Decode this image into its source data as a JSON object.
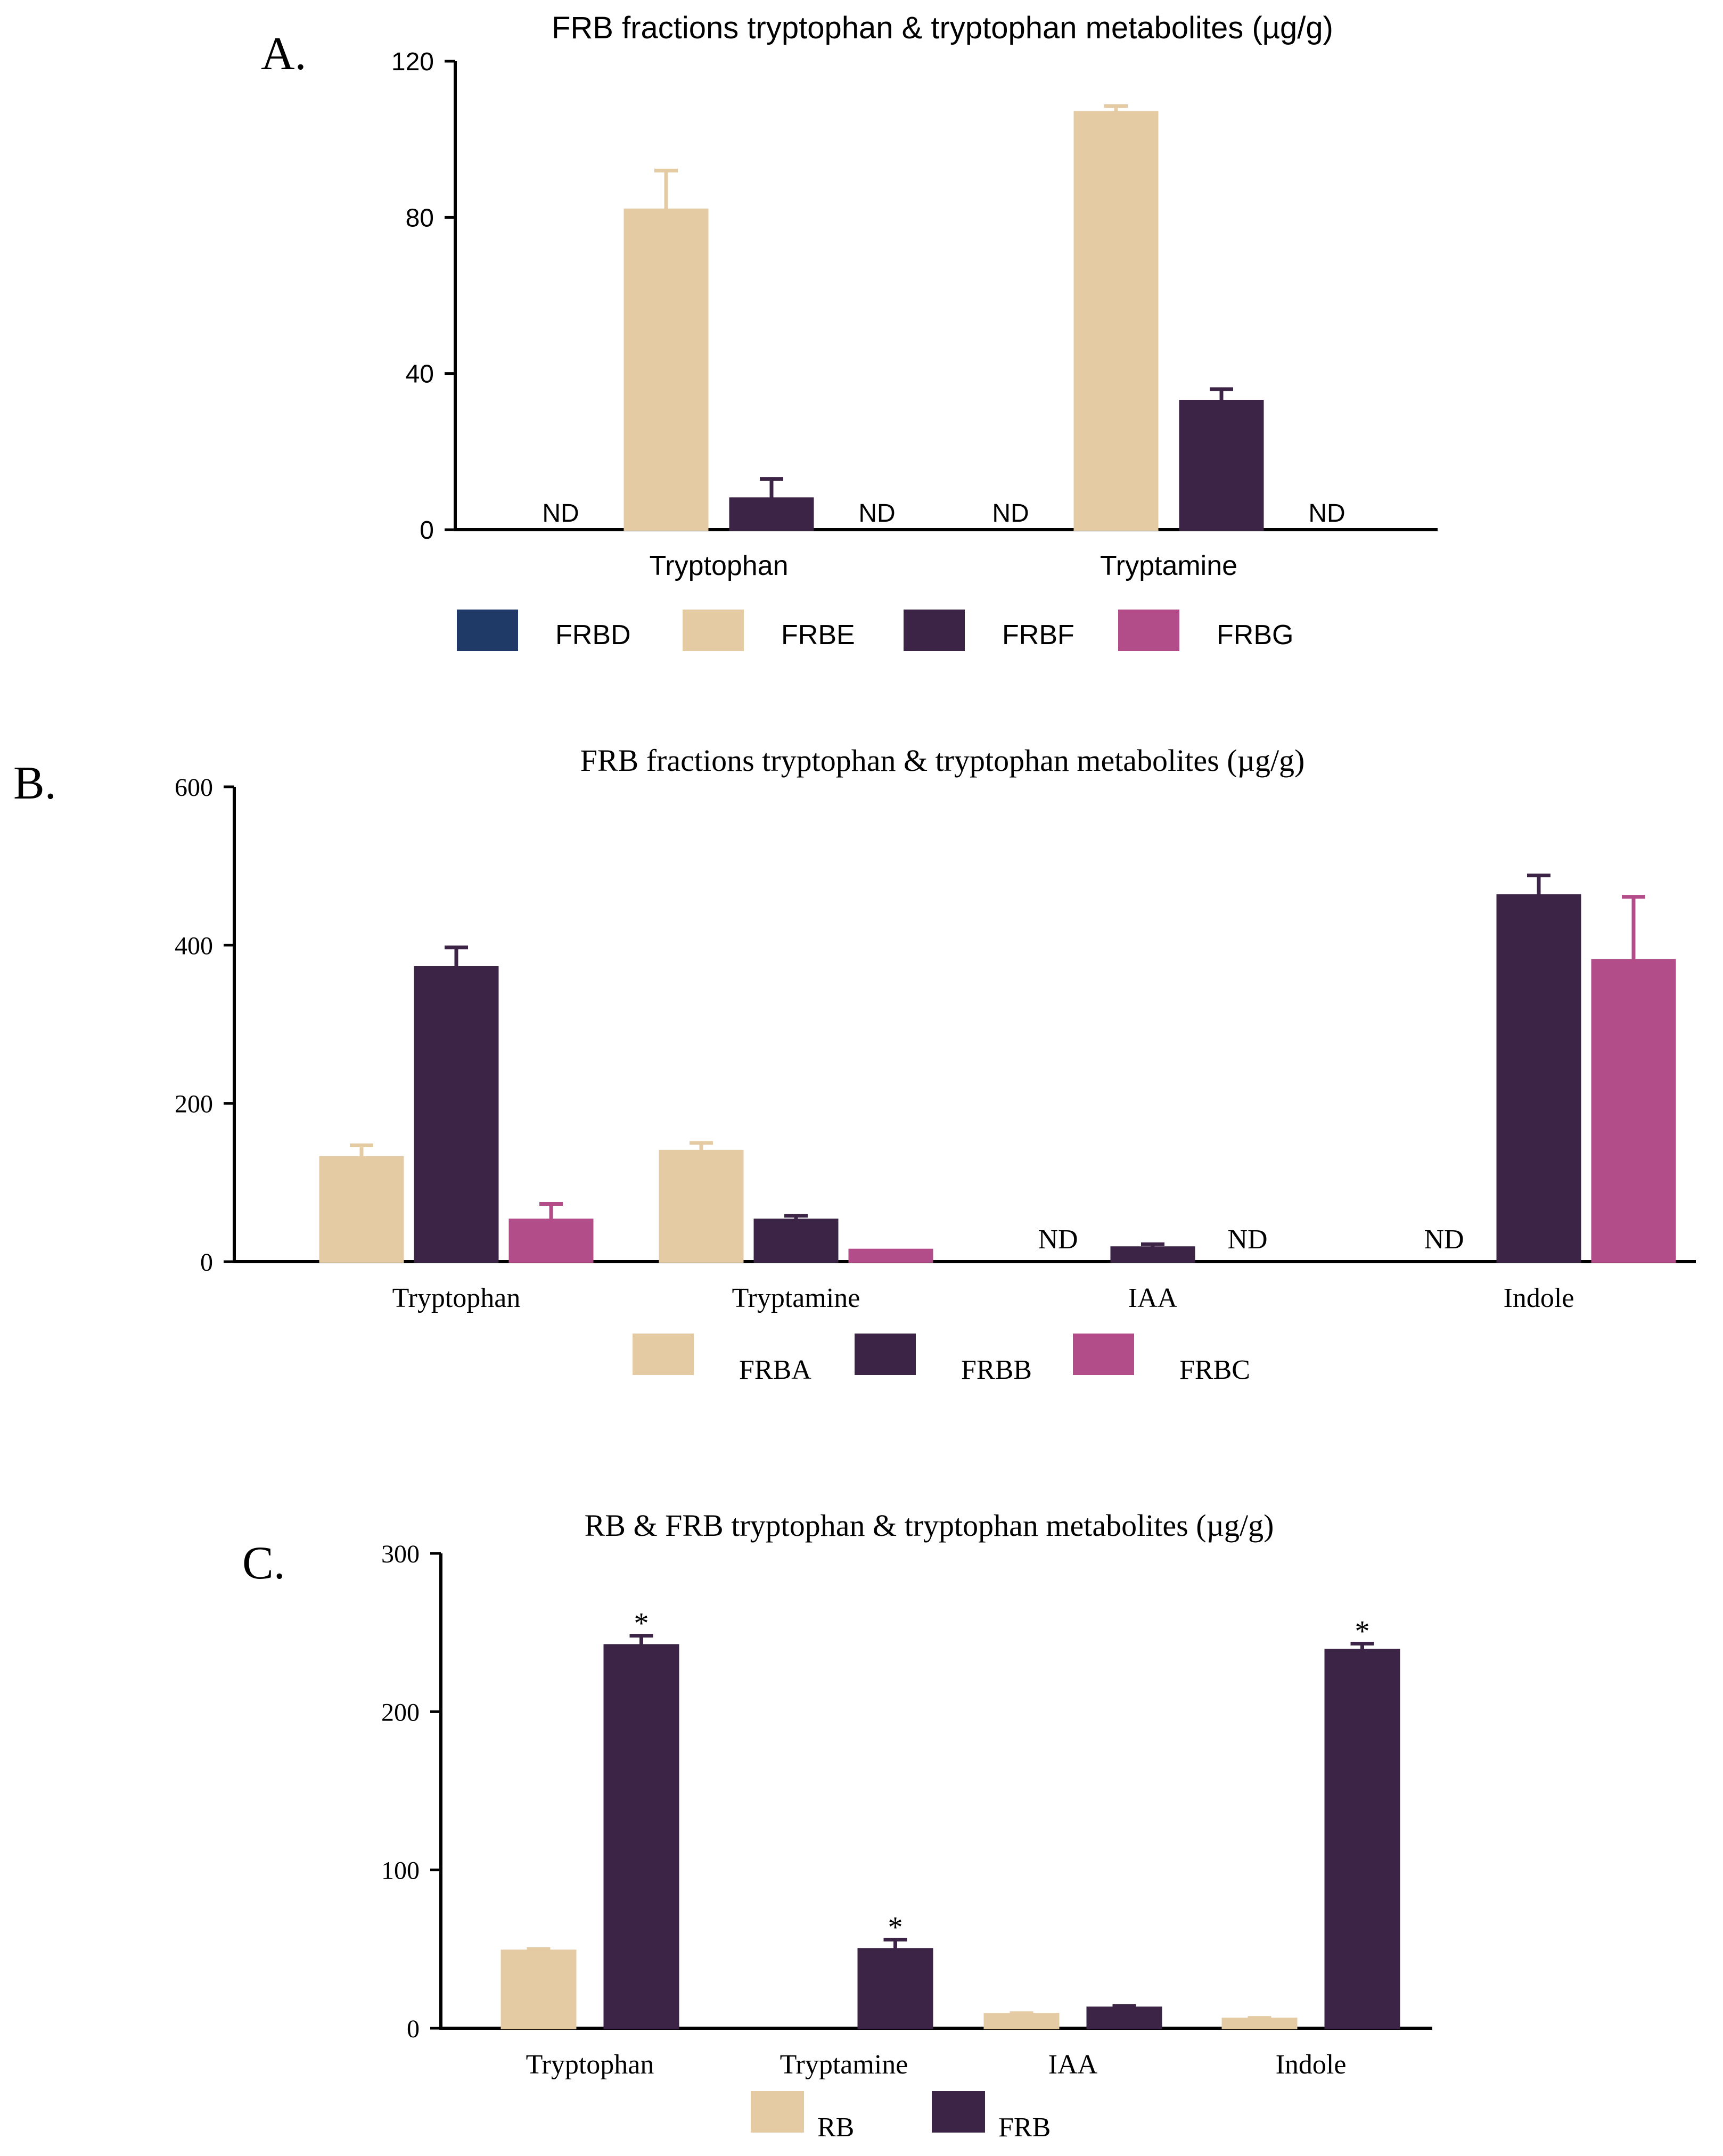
{
  "figure": {
    "background": "#ffffff",
    "axis_color": "#000000"
  },
  "chart_data": [
    {
      "id": "A",
      "panel_label": "A.",
      "type": "bar",
      "title": "FRB fractions tryptophan & tryptophan metabolites  (µg/g)",
      "font": "sans",
      "xlabel": "",
      "ylabel": "",
      "ylim": [
        0,
        120
      ],
      "yticks": [
        0,
        40,
        80,
        120
      ],
      "categories": [
        "Tryptophan",
        "Tryptamine"
      ],
      "series": [
        {
          "name": "FRBD",
          "color": "#1f3a66",
          "values": [
            null,
            null
          ],
          "errors": [
            null,
            null
          ],
          "labels": [
            "ND",
            "ND"
          ],
          "significance": [
            "",
            ""
          ]
        },
        {
          "name": "FRBE",
          "color": "#e4cba4",
          "values": [
            82,
            107
          ],
          "errors": [
            10,
            1.5
          ],
          "labels": [
            "",
            ""
          ],
          "significance": [
            "",
            ""
          ]
        },
        {
          "name": "FRBF",
          "color": "#3b2445",
          "values": [
            8,
            33
          ],
          "errors": [
            5,
            3
          ],
          "labels": [
            "",
            ""
          ],
          "significance": [
            "",
            ""
          ]
        },
        {
          "name": "FRBG",
          "color": "#b34d89",
          "values": [
            null,
            null
          ],
          "errors": [
            null,
            null
          ],
          "labels": [
            "ND",
            "ND"
          ],
          "significance": [
            "",
            ""
          ]
        }
      ],
      "legend_position": "bottom-center"
    },
    {
      "id": "B",
      "panel_label": "B.",
      "type": "bar",
      "title": "FRB fractions tryptophan & tryptophan metabolites (µg/g)",
      "font": "serif",
      "xlabel": "",
      "ylabel": "",
      "ylim": [
        0,
        600
      ],
      "yticks": [
        0,
        200,
        400,
        600
      ],
      "categories": [
        "Tryptophan",
        "Tryptamine",
        "IAA",
        "Indole"
      ],
      "series": [
        {
          "name": "FRBA",
          "color": "#e4cba4",
          "values": [
            132,
            140,
            null,
            null
          ],
          "errors": [
            15,
            10,
            null,
            null
          ],
          "labels": [
            "",
            "",
            "ND",
            "ND"
          ],
          "significance": [
            "",
            "",
            "",
            ""
          ]
        },
        {
          "name": "FRBB",
          "color": "#3b2445",
          "values": [
            372,
            53,
            18,
            463
          ],
          "errors": [
            25,
            5,
            4,
            25
          ],
          "labels": [
            "",
            "",
            "",
            ""
          ],
          "significance": [
            "",
            "",
            "",
            ""
          ]
        },
        {
          "name": "FRBC",
          "color": "#b34d89",
          "values": [
            53,
            15,
            null,
            381
          ],
          "errors": [
            20,
            0,
            null,
            80
          ],
          "labels": [
            "",
            "",
            "ND",
            ""
          ],
          "significance": [
            "",
            "",
            "",
            ""
          ]
        }
      ],
      "legend_position": "bottom-center"
    },
    {
      "id": "C",
      "panel_label": "C.",
      "type": "bar",
      "title": "RB & FRB tryptophan & tryptophan metabolites (µg/g)",
      "font": "serif",
      "xlabel": "",
      "ylabel": "",
      "ylim": [
        0,
        300
      ],
      "yticks": [
        0,
        100,
        200,
        300
      ],
      "categories": [
        "Tryptophan",
        "Tryptamine",
        "IAA",
        "Indole"
      ],
      "series": [
        {
          "name": "RB",
          "color": "#e4cba4",
          "values": [
            49,
            null,
            9,
            6
          ],
          "errors": [
            1,
            null,
            0.5,
            0.5
          ],
          "labels": [
            "",
            "",
            "",
            ""
          ],
          "significance": [
            "",
            "",
            "",
            ""
          ]
        },
        {
          "name": "FRB",
          "color": "#3b2445",
          "values": [
            242,
            50,
            13,
            239
          ],
          "errors": [
            6,
            6,
            1,
            4
          ],
          "labels": [
            "",
            "",
            "",
            ""
          ],
          "significance": [
            "*",
            "*",
            "",
            "*"
          ]
        }
      ],
      "legend_position": "bottom-center"
    }
  ]
}
